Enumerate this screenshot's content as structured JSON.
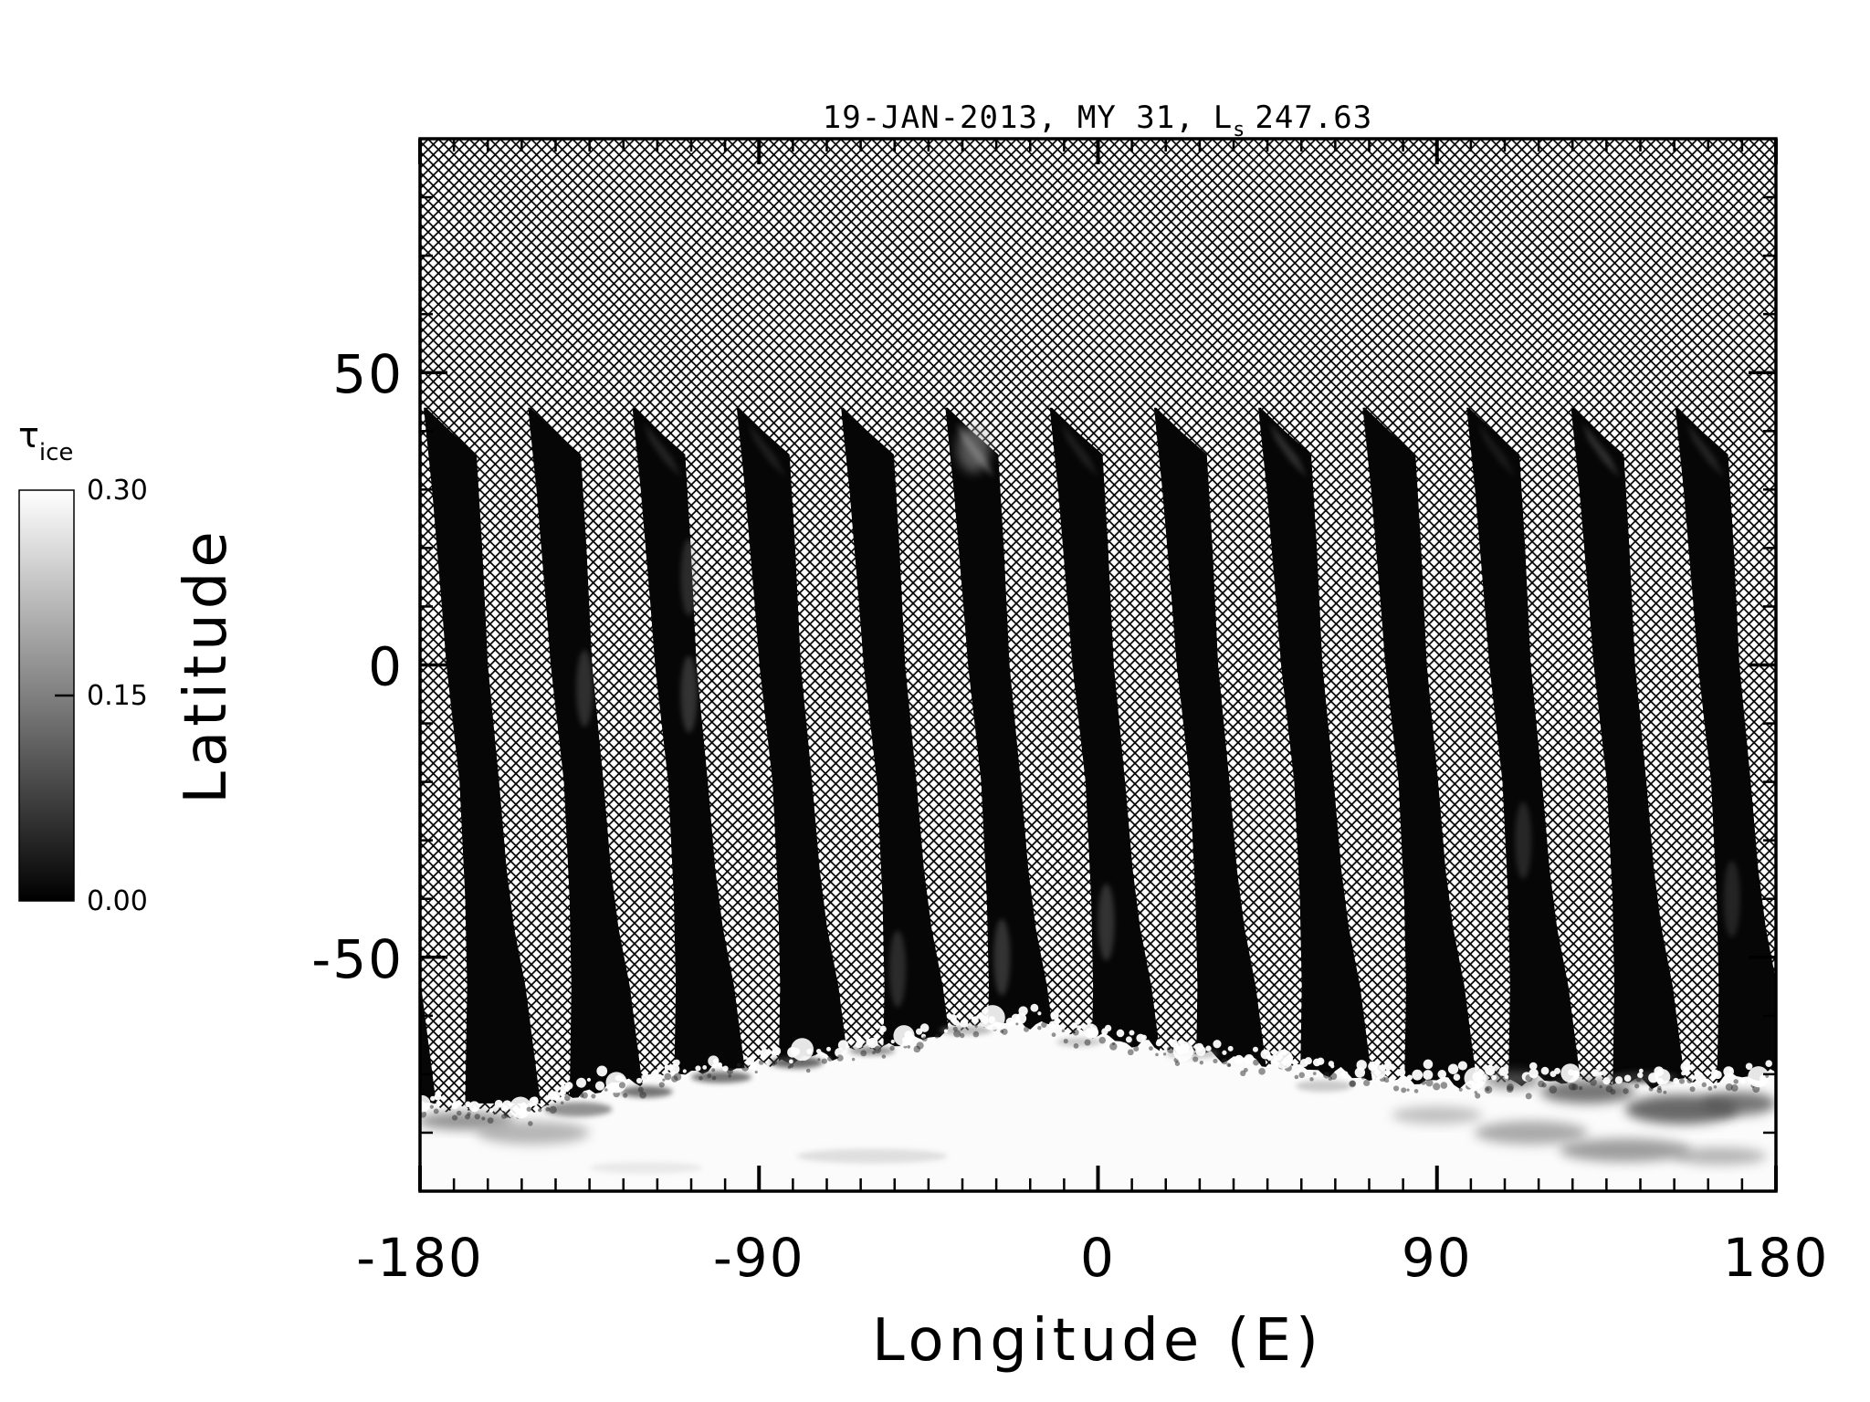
{
  "title": {
    "date_part": "19-JAN-2013, MY 31,",
    "ls_symbol": "L",
    "ls_subscript": "s",
    "ls_value": "247.63"
  },
  "axes": {
    "x": {
      "label": "Longitude (E)",
      "tick_labels": [
        "-180",
        "-90",
        "0",
        "90",
        "180"
      ],
      "tick_values": [
        -180,
        -90,
        0,
        90,
        180
      ],
      "minor_step": 9
    },
    "y": {
      "label": "Latitude",
      "tick_labels": [
        "50",
        "0",
        "-50"
      ],
      "tick_values": [
        50,
        0,
        -50
      ],
      "minor_step": 10
    }
  },
  "colorbar": {
    "label_symbol": "τ",
    "label_subscript": "ice",
    "tick_labels": [
      "0.30",
      "0.15",
      "0.00"
    ],
    "tick_values": [
      0.3,
      0.15,
      0.0
    ],
    "min": 0.0,
    "max": 0.3,
    "color_min": "#000000",
    "color_max": "#ffffff"
  },
  "colors": {
    "background": "#ffffff",
    "frame": "#000000",
    "hatch_line": "#000000",
    "swath": "#060606",
    "polar_cap": "#fbfbfb"
  },
  "chart_data": {
    "type": "heatmap",
    "title": "19-JAN-2013, MY 31, Ls 247.63",
    "xlabel": "Longitude (E)",
    "ylabel": "Latitude",
    "value_label": "tau_ice",
    "value_range": [
      0.0,
      0.3
    ],
    "xlim": [
      -180,
      180
    ],
    "ylim": [
      -90,
      90
    ],
    "xticks": [
      -180,
      -90,
      0,
      90,
      180
    ],
    "yticks": [
      -50,
      0,
      50
    ],
    "background_meaning": "crosshatch = no data",
    "swath_value": 0.02,
    "cap_value": 0.3,
    "swath_count": 13,
    "swath_tip_lat": 44,
    "swath_bottom_lat": -75,
    "swath_tip_lons": [
      -179.0,
      -151.3,
      -123.6,
      -95.9,
      -68.2,
      -40.5,
      -12.8,
      14.9,
      42.6,
      70.3,
      97.9,
      125.6,
      153.3
    ],
    "swath_left_profile": [
      [
        44,
        0
      ],
      [
        40,
        0.6
      ],
      [
        30,
        2.2
      ],
      [
        10,
        4.8
      ],
      [
        0,
        6
      ],
      [
        -20,
        9.5
      ],
      [
        -40,
        11
      ],
      [
        -55,
        11.5
      ],
      [
        -75,
        11
      ]
    ],
    "swath_right_profile": [
      [
        44,
        0.6
      ],
      [
        40,
        7
      ],
      [
        36,
        14
      ],
      [
        20,
        15.5
      ],
      [
        0,
        17
      ],
      [
        -20,
        20
      ],
      [
        -35,
        22
      ],
      [
        -45,
        24
      ],
      [
        -55,
        27
      ],
      [
        -65,
        29
      ],
      [
        -75,
        31
      ]
    ],
    "cap_boundary": [
      [
        -180,
        -75
      ],
      [
        -168,
        -76
      ],
      [
        -155,
        -77
      ],
      [
        -143,
        -74.5
      ],
      [
        -130,
        -72
      ],
      [
        -115,
        -70
      ],
      [
        -100,
        -69
      ],
      [
        -85,
        -68
      ],
      [
        -70,
        -66.5
      ],
      [
        -55,
        -65
      ],
      [
        -42,
        -63
      ],
      [
        -30,
        -61.5
      ],
      [
        -20,
        -61
      ],
      [
        -10,
        -62
      ],
      [
        0,
        -63.5
      ],
      [
        12,
        -65
      ],
      [
        25,
        -66.5
      ],
      [
        40,
        -67.5
      ],
      [
        55,
        -69
      ],
      [
        70,
        -70.5
      ],
      [
        85,
        -71
      ],
      [
        100,
        -71.5
      ],
      [
        115,
        -71
      ],
      [
        130,
        -71
      ],
      [
        145,
        -71.5
      ],
      [
        160,
        -71
      ],
      [
        170,
        -70.5
      ],
      [
        180,
        -70
      ]
    ],
    "tip_clouds": [
      {
        "swath": 2,
        "intensity": 0.22
      },
      {
        "swath": 3,
        "intensity": 0.18
      },
      {
        "swath": 5,
        "intensity": 0.5
      },
      {
        "swath": 6,
        "intensity": 0.18
      },
      {
        "swath": 8,
        "intensity": 0.3
      },
      {
        "swath": 10,
        "intensity": 0.15
      },
      {
        "swath": 11,
        "intensity": 0.3
      },
      {
        "swath": 12,
        "intensity": 0.22
      }
    ],
    "mid_wisps": [
      {
        "swath": 1,
        "lat": -4,
        "intensity": 0.28
      },
      {
        "swath": 2,
        "lat": 15,
        "intensity": 0.25
      },
      {
        "swath": 2,
        "lat": -5,
        "intensity": 0.3
      },
      {
        "swath": 4,
        "lat": -52,
        "intensity": 0.25
      },
      {
        "swath": 5,
        "lat": -50,
        "intensity": 0.3
      },
      {
        "swath": 6,
        "lat": -44,
        "intensity": 0.3
      },
      {
        "swath": 10,
        "lat": -30,
        "intensity": 0.22
      },
      {
        "swath": 12,
        "lat": -40,
        "intensity": 0.2
      }
    ],
    "cap_streaks": [
      {
        "lon": -168,
        "lat": -78,
        "w": 26,
        "h": 3,
        "shade": "#777777",
        "opacity": 0.8
      },
      {
        "lon": -150,
        "lat": -80,
        "w": 30,
        "h": 4,
        "shade": "#999999",
        "opacity": 0.7
      },
      {
        "lon": -138,
        "lat": -76,
        "w": 18,
        "h": 2.5,
        "shade": "#666666",
        "opacity": 0.7
      },
      {
        "lon": -120,
        "lat": -73,
        "w": 14,
        "h": 2,
        "shade": "#555555",
        "opacity": 0.8
      },
      {
        "lon": -100,
        "lat": -70.5,
        "w": 16,
        "h": 2,
        "shade": "#555555",
        "opacity": 0.8
      },
      {
        "lon": -80,
        "lat": -68,
        "w": 14,
        "h": 2,
        "shade": "#444444",
        "opacity": 0.8
      },
      {
        "lon": -60,
        "lat": -66,
        "w": 12,
        "h": 1.5,
        "shade": "#666666",
        "opacity": 0.7
      },
      {
        "lon": -35,
        "lat": -62.5,
        "w": 14,
        "h": 1.5,
        "shade": "#888888",
        "opacity": 0.6
      },
      {
        "lon": -5,
        "lat": -64.5,
        "w": 12,
        "h": 1.5,
        "shade": "#999999",
        "opacity": 0.5
      },
      {
        "lon": 25,
        "lat": -66.5,
        "w": 14,
        "h": 1.5,
        "shade": "#888888",
        "opacity": 0.5
      },
      {
        "lon": -60,
        "lat": -84,
        "w": 40,
        "h": 2.5,
        "shade": "#cccccc",
        "opacity": 0.6
      },
      {
        "lon": -120,
        "lat": -86,
        "w": 30,
        "h": 2,
        "shade": "#dddddd",
        "opacity": 0.6
      },
      {
        "lon": 60,
        "lat": -72,
        "w": 15,
        "h": 2,
        "shade": "#aaaaaa",
        "opacity": 0.6
      },
      {
        "lon": 90,
        "lat": -77,
        "w": 24,
        "h": 3,
        "shade": "#999999",
        "opacity": 0.6
      },
      {
        "lon": 110,
        "lat": -71,
        "w": 15,
        "h": 3,
        "shade": "#666666",
        "opacity": 0.7
      },
      {
        "lon": 115,
        "lat": -80,
        "w": 30,
        "h": 4,
        "shade": "#888888",
        "opacity": 0.7
      },
      {
        "lon": 130,
        "lat": -73,
        "w": 25,
        "h": 4,
        "shade": "#555555",
        "opacity": 0.8
      },
      {
        "lon": 145,
        "lat": -70.5,
        "w": 18,
        "h": 2,
        "shade": "#333333",
        "opacity": 0.8
      },
      {
        "lon": 155,
        "lat": -76,
        "w": 30,
        "h": 5,
        "shade": "#444444",
        "opacity": 0.8
      },
      {
        "lon": 140,
        "lat": -83,
        "w": 35,
        "h": 4,
        "shade": "#777777",
        "opacity": 0.7
      },
      {
        "lon": 170,
        "lat": -75,
        "w": 20,
        "h": 4,
        "shade": "#555555",
        "opacity": 0.8
      },
      {
        "lon": 165,
        "lat": -84,
        "w": 25,
        "h": 3,
        "shade": "#999999",
        "opacity": 0.7
      }
    ]
  }
}
